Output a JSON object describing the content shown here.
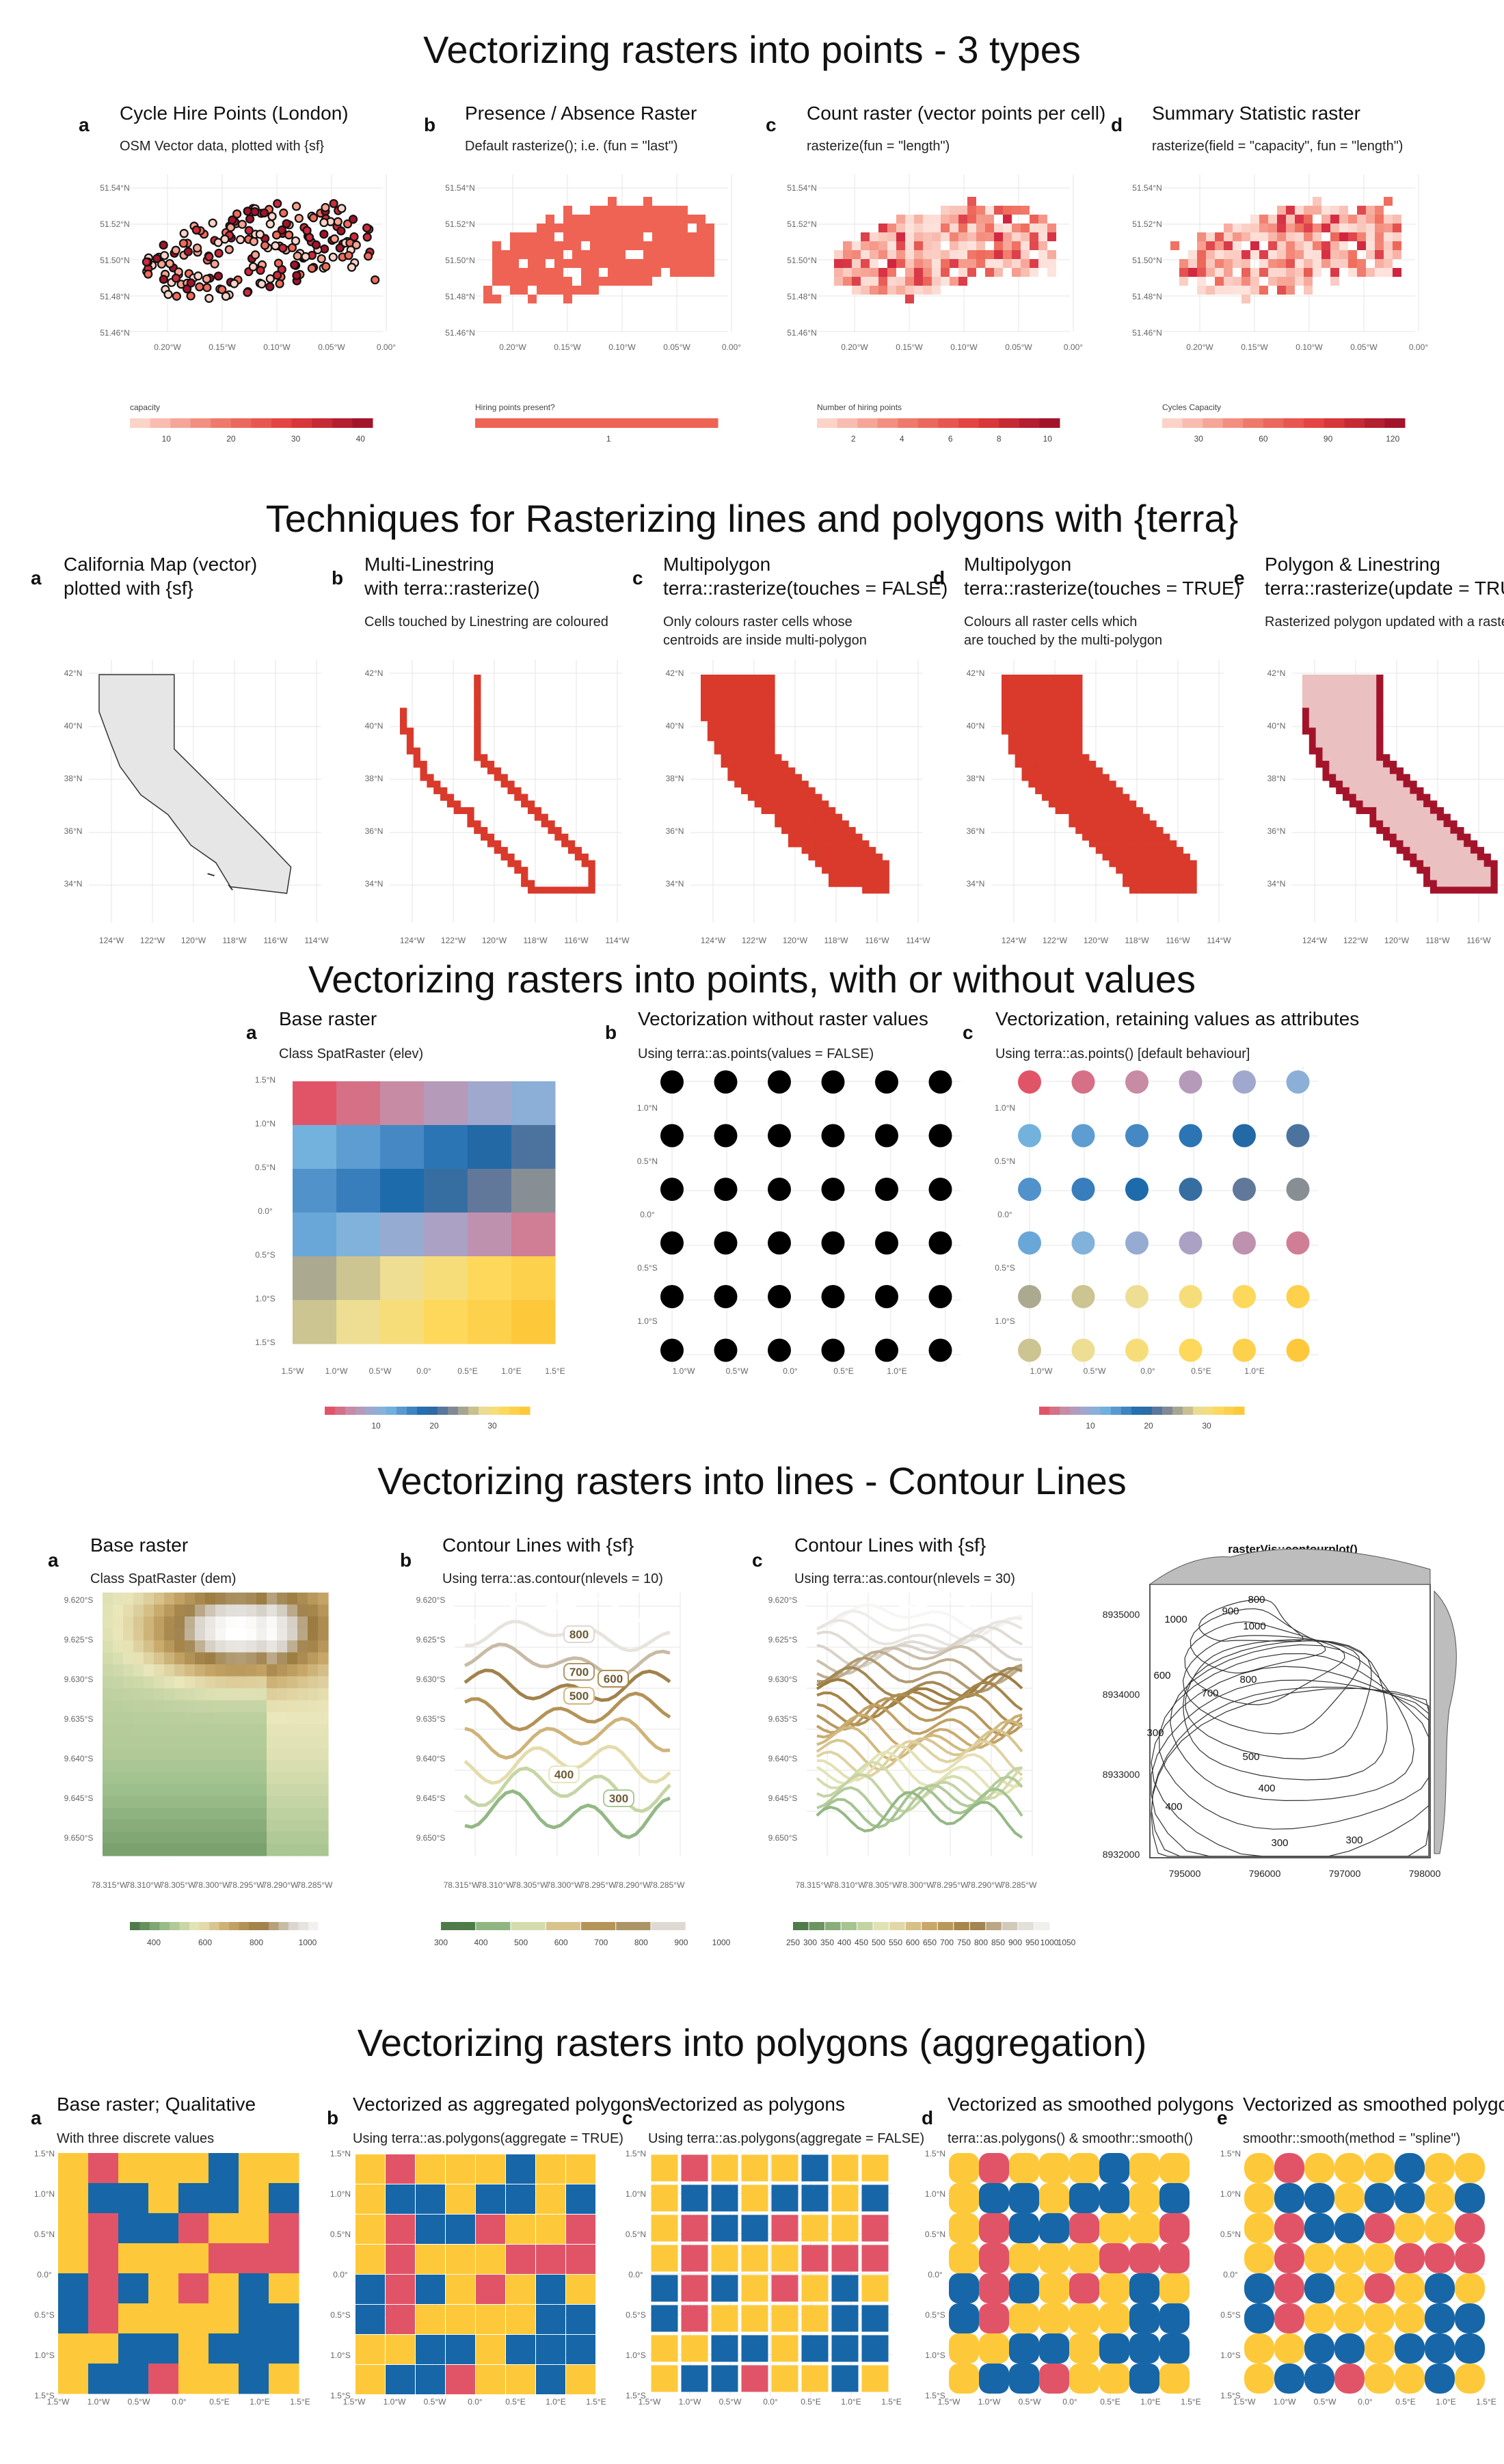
{
  "colors": {
    "red": "#e8584e",
    "point_red": "#e43d2b",
    "dark_red": "#a3142b",
    "grid": "#e3e3e3",
    "q_red": "#e15468",
    "q_yellow": "#fdc93b",
    "q_blue": "#1766a8"
  },
  "section1": {
    "title": "Vectorizing rasters into points - 3 types",
    "panels": [
      {
        "tag": "a",
        "title": "Cycle Hire Points (London)",
        "subtitle": "OSM Vector data, plotted with {sf}",
        "legend_title": "capacity",
        "legend_ticks": [
          "10",
          "20",
          "30",
          "40"
        ]
      },
      {
        "tag": "b",
        "title": "Presence / Absence Raster",
        "subtitle": "Default rasterize(); i.e. (fun = \"last\")",
        "legend_title": "Hiring points present?",
        "legend_ticks": [
          "1"
        ]
      },
      {
        "tag": "c",
        "title": "Count raster (vector points per cell)",
        "subtitle": "rasterize(fun = \"length\")",
        "legend_title": "Number of hiring points",
        "legend_ticks": [
          "2",
          "4",
          "6",
          "8",
          "10"
        ]
      },
      {
        "tag": "d",
        "title": "Summary Statistic raster",
        "subtitle": "rasterize(field = \"capacity\", fun = \"length\")",
        "legend_title": "Cycles Capacity",
        "legend_ticks": [
          "30",
          "60",
          "90",
          "120"
        ]
      }
    ],
    "y_ticks": [
      "51.54°N",
      "51.52°N",
      "51.50°N",
      "51.48°N",
      "51.46°N"
    ],
    "x_ticks": [
      "0.20°W",
      "0.15°W",
      "0.10°W",
      "0.05°W",
      "0.00°"
    ]
  },
  "section2": {
    "title": "Techniques for Rasterizing lines and polygons with {terra}",
    "panels": [
      {
        "tag": "a",
        "title1": "California Map (vector)",
        "title2": "plotted with {sf}",
        "sub1": "",
        "sub2": ""
      },
      {
        "tag": "b",
        "title1": "Multi-Linestring",
        "title2": "with terra::rasterize()",
        "sub1": "Cells touched by Linestring are coloured",
        "sub2": ""
      },
      {
        "tag": "c",
        "title1": "Multipolygon",
        "title2": "terra::rasterize(touches = FALSE)",
        "sub1": "Only colours raster cells whose",
        "sub2": "centroids are inside multi-polygon"
      },
      {
        "tag": "d",
        "title1": "Multipolygon",
        "title2": "terra::rasterize(touches = TRUE)",
        "sub1": "Colours all raster cells which",
        "sub2": "are touched by the multi-polygon"
      },
      {
        "tag": "e",
        "title1": "Polygon & Linestring",
        "title2": "terra::rasterize(update = TRUE)",
        "sub1": "Rasterized polygon updated with a raster",
        "sub2": ""
      }
    ],
    "y_ticks": [
      "42°N",
      "40°N",
      "38°N",
      "36°N",
      "34°N"
    ],
    "x_ticks": [
      "124°W",
      "122°W",
      "120°W",
      "118°W",
      "116°W",
      "114°W"
    ]
  },
  "section3": {
    "title": "Vectorizing rasters into points, with or without values",
    "panels": [
      {
        "tag": "a",
        "title": "Base raster",
        "subtitle": "Class SpatRaster (elev)"
      },
      {
        "tag": "b",
        "title": "Vectorization without raster values",
        "subtitle": "Using terra::as.points(values = FALSE)"
      },
      {
        "tag": "c",
        "title": "Vectorization, retaining values as attributes",
        "subtitle": "Using terra::as.points() [default behaviour]"
      }
    ],
    "a_y_ticks": [
      "1.5°N",
      "1.0°N",
      "0.5°N",
      "0.0°",
      "0.5°S",
      "1.0°S",
      "1.5°S"
    ],
    "a_x_ticks": [
      "1.5°W",
      "1.0°W",
      "0.5°W",
      "0.0°",
      "0.5°E",
      "1.0°E",
      "1.5°E"
    ],
    "b_y_ticks": [
      "1.0°N",
      "0.5°N",
      "0.0°",
      "0.5°S",
      "1.0°S"
    ],
    "b_x_ticks": [
      "1.0°W",
      "0.5°W",
      "0.0°",
      "0.5°E",
      "1.0°E"
    ],
    "legend_ticks": [
      "10",
      "20",
      "30"
    ]
  },
  "section4": {
    "title": "Vectorizing rasters into lines - Contour Lines",
    "panels": [
      {
        "tag": "a",
        "title": "Base raster",
        "subtitle": "Class SpatRaster (dem)"
      },
      {
        "tag": "b",
        "title": "Contour Lines with {sf}",
        "subtitle": "Using terra::as.contour(nlevels = 10)"
      },
      {
        "tag": "c",
        "title": "Contour Lines with {sf}",
        "subtitle": "Using terra::as.contour(nlevels = 30)"
      },
      {
        "tag": "",
        "title": "rasterVis::contourplot()",
        "subtitle": ""
      }
    ],
    "y_ticks": [
      "9.620°S",
      "9.625°S",
      "9.630°S",
      "9.635°S",
      "9.640°S",
      "9.645°S",
      "9.650°S"
    ],
    "x_ticks": [
      "78.315°W",
      "78.310°W",
      "78.305°W",
      "78.300°W",
      "78.295°W",
      "78.290°W",
      "78.285°W"
    ],
    "legend_a": [
      "400",
      "600",
      "800",
      "1000"
    ],
    "legend_b": [
      "300",
      "400",
      "500",
      "600",
      "700",
      "800",
      "900",
      "1000"
    ],
    "legend_c": [
      "250",
      "300",
      "350",
      "400",
      "450",
      "500",
      "550",
      "600",
      "650",
      "700",
      "750",
      "800",
      "850",
      "900",
      "950",
      "1000",
      "1050"
    ],
    "contour_labels_b": [
      "800",
      "700",
      "600",
      "500",
      "400",
      "300"
    ],
    "rv_y_ticks": [
      "8935000",
      "8934000",
      "8933000",
      "8932000"
    ],
    "rv_x_ticks": [
      "795000",
      "796000",
      "797000",
      "798000"
    ],
    "rv_labels": [
      "800",
      "1000",
      "900",
      "1000",
      "600",
      "700",
      "800",
      "500",
      "400",
      "400",
      "300",
      "300",
      "300"
    ]
  },
  "section5": {
    "title": "Vectorizing rasters into polygons (aggregation)",
    "panels": [
      {
        "tag": "a",
        "title": "Base raster; Qualitative",
        "subtitle": "With three discrete values"
      },
      {
        "tag": "b",
        "title": "Vectorized as aggregated polygons",
        "subtitle": "Using terra::as.polygons(aggregate = TRUE)"
      },
      {
        "tag": "c",
        "title": "Vectorized as polygons",
        "subtitle": "Using terra::as.polygons(aggregate = FALSE)"
      },
      {
        "tag": "d",
        "title": "Vectorized as smoothed polygons",
        "subtitle": "terra::as.polygons() & smoothr::smooth()"
      },
      {
        "tag": "e",
        "title": "Vectorized as smoothed polygons",
        "subtitle": "smoothr::smooth(method = \"spline\")"
      }
    ],
    "y_ticks": [
      "1.5°N",
      "1.0°N",
      "0.5°N",
      "0.0°",
      "0.5°S",
      "1.0°S",
      "1.5°S"
    ],
    "x_ticks": [
      "1.5°W",
      "1.0°W",
      "0.5°W",
      "0.0°",
      "0.5°E",
      "1.0°E",
      "1.5°E"
    ]
  },
  "chart_data": [
    {
      "type": "scatter",
      "title": "Cycle Hire Points (London)",
      "legend": "capacity",
      "xlim": [
        -0.24,
        0.0
      ],
      "ylim": [
        51.45,
        51.55
      ]
    },
    {
      "type": "heatmap",
      "title": "Presence / Absence Raster"
    },
    {
      "type": "heatmap",
      "title": "Count raster (vector points per cell)",
      "legend_range": [
        1,
        10
      ]
    },
    {
      "type": "heatmap",
      "title": "Summary Statistic raster",
      "legend_range": [
        5,
        120
      ]
    },
    {
      "type": "heatmap",
      "title": "Base raster",
      "rows": 6,
      "cols": 6,
      "values": [
        [
          1,
          3,
          5,
          7,
          9,
          11
        ],
        [
          13,
          15,
          17,
          19,
          21,
          23
        ],
        [
          16,
          18,
          20,
          22,
          24,
          26
        ],
        [
          14,
          12,
          10,
          8,
          6,
          4
        ],
        [
          28,
          30,
          32,
          34,
          36,
          38
        ],
        [
          30,
          32,
          34,
          36,
          38,
          40
        ]
      ]
    },
    {
      "type": "heatmap",
      "title": "Base raster (qualitative)",
      "rows": 8,
      "cols": 8,
      "classes": [
        "red",
        "yellow",
        "blue"
      ],
      "values": [
        [
          1,
          0,
          1,
          1,
          1,
          2,
          1,
          1
        ],
        [
          1,
          2,
          2,
          1,
          2,
          2,
          1,
          2
        ],
        [
          1,
          0,
          2,
          2,
          0,
          1,
          1,
          0
        ],
        [
          1,
          0,
          1,
          1,
          1,
          0,
          0,
          0
        ],
        [
          2,
          0,
          2,
          1,
          0,
          1,
          2,
          1
        ],
        [
          2,
          0,
          1,
          1,
          1,
          1,
          2,
          2
        ],
        [
          1,
          1,
          2,
          2,
          1,
          2,
          2,
          2
        ],
        [
          1,
          2,
          2,
          0,
          1,
          1,
          2,
          1
        ]
      ]
    }
  ]
}
